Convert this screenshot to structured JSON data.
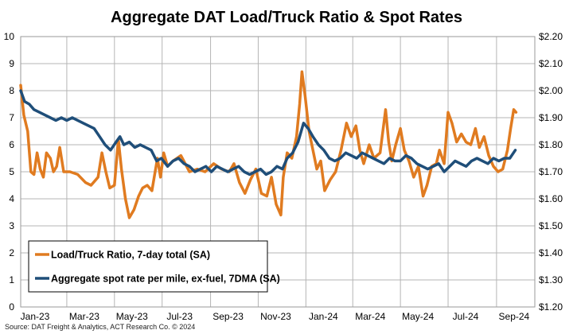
{
  "chart_data": {
    "type": "line",
    "title": "Aggregate DAT Load/Truck Ratio & Spot Rates",
    "source": "Source: DAT Freight & Analytics, ACT Research Co. © 2024",
    "x_tick_labels": [
      "Jan-23",
      "Mar-23",
      "May-23",
      "Jul-23",
      "Sep-23",
      "Nov-23",
      "Jan-24",
      "Mar-24",
      "May-24",
      "Jul-24",
      "Sep-24"
    ],
    "x_range": [
      "2023-01-01",
      "2024-10-20"
    ],
    "y_left": {
      "min": 0,
      "max": 10,
      "step": 1,
      "tick_labels": [
        "0",
        "1",
        "2",
        "3",
        "4",
        "5",
        "6",
        "7",
        "8",
        "9",
        "10"
      ]
    },
    "y_right": {
      "min": 1.2,
      "max": 2.2,
      "step": 0.1,
      "tick_labels": [
        "$1.20",
        "$1.30",
        "$1.40",
        "$1.50",
        "$1.60",
        "$1.70",
        "$1.80",
        "$1.90",
        "$2.00",
        "$2.10",
        "$2.20"
      ]
    },
    "grid": "horizontal and vertical",
    "legend_position": "bottom-left",
    "series": [
      {
        "name": "Load/Truck Ratio, 7-day total (SA)",
        "axis": "left",
        "color": "#E07B20",
        "points": [
          [
            "2023-01-01",
            8.2
          ],
          [
            "2023-01-05",
            7.1
          ],
          [
            "2023-01-10",
            6.5
          ],
          [
            "2023-01-14",
            5.0
          ],
          [
            "2023-01-18",
            4.9
          ],
          [
            "2023-01-22",
            5.7
          ],
          [
            "2023-01-26",
            5.1
          ],
          [
            "2023-01-30",
            4.8
          ],
          [
            "2023-02-03",
            5.7
          ],
          [
            "2023-02-08",
            5.5
          ],
          [
            "2023-02-12",
            5.0
          ],
          [
            "2023-02-16",
            5.2
          ],
          [
            "2023-02-20",
            5.9
          ],
          [
            "2023-02-25",
            5.0
          ],
          [
            "2023-03-05",
            5.0
          ],
          [
            "2023-03-15",
            4.9
          ],
          [
            "2023-03-25",
            4.6
          ],
          [
            "2023-04-01",
            4.5
          ],
          [
            "2023-04-10",
            4.8
          ],
          [
            "2023-04-15",
            5.7
          ],
          [
            "2023-04-20",
            5.0
          ],
          [
            "2023-04-25",
            4.4
          ],
          [
            "2023-05-01",
            4.5
          ],
          [
            "2023-05-06",
            6.2
          ],
          [
            "2023-05-10",
            5.1
          ],
          [
            "2023-05-15",
            4.0
          ],
          [
            "2023-05-20",
            3.3
          ],
          [
            "2023-05-26",
            3.6
          ],
          [
            "2023-06-01",
            4.1
          ],
          [
            "2023-06-06",
            4.4
          ],
          [
            "2023-06-12",
            4.5
          ],
          [
            "2023-06-18",
            4.3
          ],
          [
            "2023-06-25",
            5.5
          ],
          [
            "2023-06-29",
            4.8
          ],
          [
            "2023-07-03",
            5.7
          ],
          [
            "2023-07-08",
            5.2
          ],
          [
            "2023-07-15",
            5.4
          ],
          [
            "2023-07-25",
            5.6
          ],
          [
            "2023-08-05",
            5.0
          ],
          [
            "2023-08-15",
            5.1
          ],
          [
            "2023-08-25",
            5.0
          ],
          [
            "2023-09-05",
            5.3
          ],
          [
            "2023-09-15",
            5.1
          ],
          [
            "2023-09-25",
            5.0
          ],
          [
            "2023-10-01",
            5.3
          ],
          [
            "2023-10-08",
            4.6
          ],
          [
            "2023-10-15",
            4.2
          ],
          [
            "2023-10-22",
            4.7
          ],
          [
            "2023-10-29",
            5.1
          ],
          [
            "2023-11-05",
            4.2
          ],
          [
            "2023-11-12",
            4.1
          ],
          [
            "2023-11-18",
            4.8
          ],
          [
            "2023-11-24",
            3.8
          ],
          [
            "2023-11-30",
            3.4
          ],
          [
            "2023-12-03",
            4.8
          ],
          [
            "2023-12-08",
            5.7
          ],
          [
            "2023-12-14",
            5.5
          ],
          [
            "2023-12-20",
            6.3
          ],
          [
            "2023-12-24",
            7.5
          ],
          [
            "2023-12-27",
            8.7
          ],
          [
            "2023-12-31",
            7.8
          ],
          [
            "2024-01-05",
            6.5
          ],
          [
            "2024-01-10",
            5.8
          ],
          [
            "2024-01-15",
            5.1
          ],
          [
            "2024-01-20",
            5.4
          ],
          [
            "2024-01-25",
            4.3
          ],
          [
            "2024-02-01",
            4.7
          ],
          [
            "2024-02-08",
            5.0
          ],
          [
            "2024-02-15",
            5.8
          ],
          [
            "2024-02-22",
            6.8
          ],
          [
            "2024-02-28",
            6.3
          ],
          [
            "2024-03-05",
            6.7
          ],
          [
            "2024-03-10",
            5.8
          ],
          [
            "2024-03-15",
            5.3
          ],
          [
            "2024-03-22",
            6.0
          ],
          [
            "2024-03-28",
            5.5
          ],
          [
            "2024-04-05",
            5.7
          ],
          [
            "2024-04-12",
            7.3
          ],
          [
            "2024-04-16",
            6.1
          ],
          [
            "2024-04-20",
            5.4
          ],
          [
            "2024-04-25",
            6.0
          ],
          [
            "2024-05-01",
            6.6
          ],
          [
            "2024-05-06",
            5.8
          ],
          [
            "2024-05-12",
            5.4
          ],
          [
            "2024-05-18",
            4.8
          ],
          [
            "2024-05-24",
            5.2
          ],
          [
            "2024-05-30",
            4.1
          ],
          [
            "2024-06-04",
            4.5
          ],
          [
            "2024-06-10",
            5.2
          ],
          [
            "2024-06-16",
            5.3
          ],
          [
            "2024-06-20",
            5.8
          ],
          [
            "2024-06-26",
            5.3
          ],
          [
            "2024-07-01",
            7.2
          ],
          [
            "2024-07-06",
            6.8
          ],
          [
            "2024-07-12",
            6.1
          ],
          [
            "2024-07-18",
            6.4
          ],
          [
            "2024-07-24",
            6.1
          ],
          [
            "2024-07-30",
            6.0
          ],
          [
            "2024-08-05",
            6.6
          ],
          [
            "2024-08-10",
            5.9
          ],
          [
            "2024-08-16",
            6.3
          ],
          [
            "2024-08-22",
            5.6
          ],
          [
            "2024-08-28",
            5.2
          ],
          [
            "2024-09-03",
            5.0
          ],
          [
            "2024-09-09",
            5.1
          ],
          [
            "2024-09-15",
            5.8
          ],
          [
            "2024-09-19",
            6.6
          ],
          [
            "2024-09-23",
            7.3
          ],
          [
            "2024-09-26",
            7.2
          ]
        ]
      },
      {
        "name": "Aggregate spot rate per mile, ex-fuel, 7DMA (SA)",
        "axis": "right",
        "color": "#1F4E79",
        "points": [
          [
            "2023-01-01",
            2.0
          ],
          [
            "2023-01-06",
            1.96
          ],
          [
            "2023-01-12",
            1.95
          ],
          [
            "2023-01-18",
            1.93
          ],
          [
            "2023-01-25",
            1.92
          ],
          [
            "2023-02-01",
            1.91
          ],
          [
            "2023-02-08",
            1.9
          ],
          [
            "2023-02-15",
            1.89
          ],
          [
            "2023-02-22",
            1.9
          ],
          [
            "2023-03-01",
            1.89
          ],
          [
            "2023-03-08",
            1.9
          ],
          [
            "2023-03-15",
            1.89
          ],
          [
            "2023-03-22",
            1.88
          ],
          [
            "2023-03-29",
            1.87
          ],
          [
            "2023-04-05",
            1.86
          ],
          [
            "2023-04-12",
            1.83
          ],
          [
            "2023-04-19",
            1.8
          ],
          [
            "2023-04-26",
            1.78
          ],
          [
            "2023-05-03",
            1.81
          ],
          [
            "2023-05-08",
            1.83
          ],
          [
            "2023-05-13",
            1.8
          ],
          [
            "2023-05-20",
            1.81
          ],
          [
            "2023-05-27",
            1.79
          ],
          [
            "2023-06-03",
            1.8
          ],
          [
            "2023-06-10",
            1.79
          ],
          [
            "2023-06-17",
            1.78
          ],
          [
            "2023-06-24",
            1.74
          ],
          [
            "2023-06-30",
            1.75
          ],
          [
            "2023-07-08",
            1.72
          ],
          [
            "2023-07-15",
            1.74
          ],
          [
            "2023-07-22",
            1.75
          ],
          [
            "2023-07-29",
            1.73
          ],
          [
            "2023-08-05",
            1.72
          ],
          [
            "2023-08-12",
            1.7
          ],
          [
            "2023-08-19",
            1.71
          ],
          [
            "2023-08-26",
            1.72
          ],
          [
            "2023-09-02",
            1.7
          ],
          [
            "2023-09-09",
            1.72
          ],
          [
            "2023-09-16",
            1.71
          ],
          [
            "2023-09-23",
            1.7
          ],
          [
            "2023-09-30",
            1.71
          ],
          [
            "2023-10-07",
            1.72
          ],
          [
            "2023-10-14",
            1.7
          ],
          [
            "2023-10-21",
            1.69
          ],
          [
            "2023-10-28",
            1.7
          ],
          [
            "2023-11-04",
            1.71
          ],
          [
            "2023-11-11",
            1.69
          ],
          [
            "2023-11-18",
            1.7
          ],
          [
            "2023-11-25",
            1.72
          ],
          [
            "2023-12-02",
            1.71
          ],
          [
            "2023-12-08",
            1.75
          ],
          [
            "2023-12-15",
            1.77
          ],
          [
            "2023-12-22",
            1.81
          ],
          [
            "2023-12-29",
            1.88
          ],
          [
            "2024-01-04",
            1.86
          ],
          [
            "2024-01-10",
            1.83
          ],
          [
            "2024-01-17",
            1.8
          ],
          [
            "2024-01-24",
            1.78
          ],
          [
            "2024-01-31",
            1.75
          ],
          [
            "2024-02-07",
            1.74
          ],
          [
            "2024-02-14",
            1.75
          ],
          [
            "2024-02-21",
            1.77
          ],
          [
            "2024-02-28",
            1.76
          ],
          [
            "2024-03-06",
            1.75
          ],
          [
            "2024-03-13",
            1.77
          ],
          [
            "2024-03-20",
            1.76
          ],
          [
            "2024-03-27",
            1.75
          ],
          [
            "2024-04-03",
            1.74
          ],
          [
            "2024-04-10",
            1.73
          ],
          [
            "2024-04-17",
            1.75
          ],
          [
            "2024-04-24",
            1.74
          ],
          [
            "2024-05-01",
            1.74
          ],
          [
            "2024-05-08",
            1.76
          ],
          [
            "2024-05-15",
            1.75
          ],
          [
            "2024-05-22",
            1.73
          ],
          [
            "2024-05-29",
            1.72
          ],
          [
            "2024-06-05",
            1.71
          ],
          [
            "2024-06-12",
            1.72
          ],
          [
            "2024-06-19",
            1.73
          ],
          [
            "2024-06-26",
            1.7
          ],
          [
            "2024-07-03",
            1.72
          ],
          [
            "2024-07-10",
            1.74
          ],
          [
            "2024-07-17",
            1.73
          ],
          [
            "2024-07-24",
            1.72
          ],
          [
            "2024-07-31",
            1.74
          ],
          [
            "2024-08-07",
            1.75
          ],
          [
            "2024-08-14",
            1.74
          ],
          [
            "2024-08-21",
            1.73
          ],
          [
            "2024-08-28",
            1.75
          ],
          [
            "2024-09-04",
            1.74
          ],
          [
            "2024-09-11",
            1.75
          ],
          [
            "2024-09-18",
            1.75
          ],
          [
            "2024-09-25",
            1.78
          ]
        ]
      }
    ]
  }
}
